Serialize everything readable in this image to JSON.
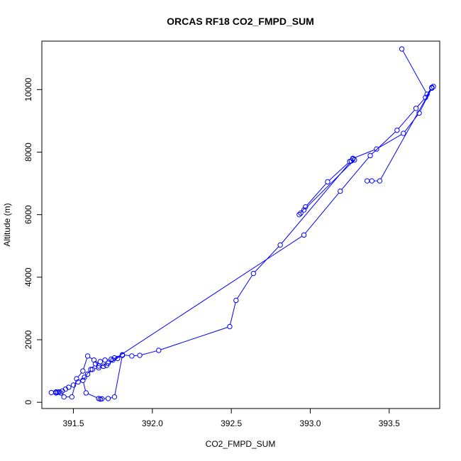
{
  "chart_data": {
    "type": "line",
    "title": "ORCAS RF18 CO2_FMPD_SUM",
    "xlabel": "CO2_FMPD_SUM",
    "ylabel": "Altitude (m)",
    "xlim": [
      391.3,
      393.82
    ],
    "ylim": [
      -200,
      11550
    ],
    "xticks": [
      391.5,
      392.0,
      392.5,
      393.0,
      393.5
    ],
    "xtick_labels": [
      "391.5",
      "392.0",
      "392.5",
      "393.0",
      "393.5"
    ],
    "yticks": [
      0,
      2000,
      4000,
      6000,
      8000,
      10000
    ],
    "ytick_labels": [
      "0",
      "2000",
      "4000",
      "6000",
      "8000",
      "10000"
    ],
    "grid": false,
    "series": [
      {
        "color": "#0000ff",
        "marker": "open-circle",
        "x": [
          393.58,
          393.74,
          393.77,
          393.78,
          393.77,
          393.69,
          393.59,
          393.42,
          393.27,
          393.25,
          393.11,
          392.97,
          392.93,
          392.94,
          392.96,
          393.28,
          393.27,
          393.26,
          392.81,
          392.64,
          392.53,
          392.49,
          392.04,
          391.92,
          391.87,
          391.81,
          391.71,
          391.66,
          391.63,
          391.59,
          391.56,
          391.52,
          391.49,
          391.44,
          391.42,
          391.4,
          391.39,
          391.36,
          391.39,
          391.41,
          391.43,
          391.45,
          391.47,
          391.5,
          391.53,
          391.57,
          391.61,
          391.64,
          391.67,
          391.7,
          391.74,
          391.76,
          391.78,
          391.81,
          391.76,
          391.72,
          391.68,
          391.67,
          391.66,
          391.58,
          391.56,
          391.59,
          391.62,
          391.66,
          391.69,
          391.72,
          391.75,
          392.96,
          393.19,
          393.38,
          393.55,
          393.67,
          393.73,
          393.77,
          393.44,
          393.39,
          393.36
        ],
        "y": [
          11300,
          9850,
          10070,
          10100,
          10050,
          9250,
          8600,
          8100,
          7800,
          7700,
          7050,
          6250,
          6000,
          6050,
          6150,
          7750,
          7780,
          7720,
          5030,
          4120,
          3260,
          2420,
          1660,
          1500,
          1480,
          1520,
          1180,
          1160,
          1350,
          1480,
          1000,
          750,
          170,
          170,
          300,
          320,
          330,
          310,
          300,
          330,
          360,
          420,
          480,
          550,
          650,
          800,
          1050,
          1230,
          1300,
          1350,
          1380,
          1420,
          1400,
          1500,
          170,
          120,
          110,
          100,
          120,
          300,
          700,
          900,
          1050,
          1100,
          1150,
          1250,
          1350,
          5350,
          6750,
          7890,
          8700,
          9400,
          9750,
          10050,
          7080,
          7080,
          7080
        ]
      }
    ]
  }
}
